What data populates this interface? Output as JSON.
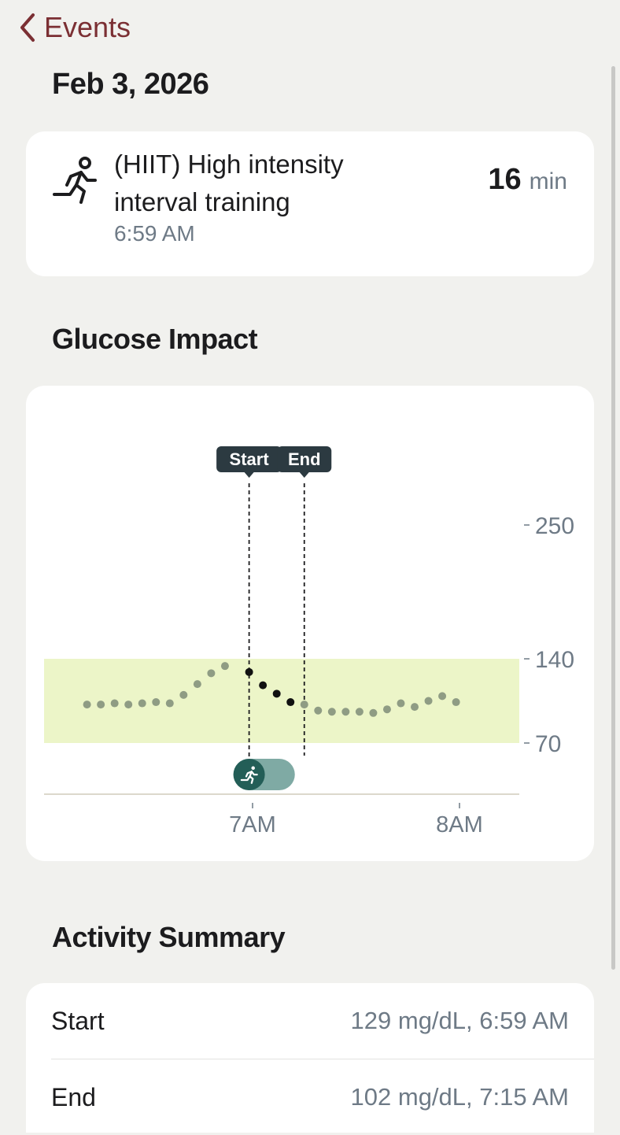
{
  "nav": {
    "back_label": "Events"
  },
  "date": "Feb 3, 2026",
  "event": {
    "name": "(HIIT) High intensity interval training",
    "time": "6:59 AM",
    "duration_value": "16",
    "duration_unit": "min",
    "icon": "running-person-icon"
  },
  "sections": {
    "glucose_impact": "Glucose Impact",
    "activity_summary": "Activity Summary"
  },
  "chart_data": {
    "type": "scatter",
    "x_ticks": [
      "7AM",
      "8AM"
    ],
    "y_ticks": [
      250,
      140,
      70
    ],
    "target_range": [
      70,
      140
    ],
    "markers": [
      {
        "label": "Start",
        "x": "6:59 AM"
      },
      {
        "label": "End",
        "x": "7:15 AM"
      }
    ],
    "points_before": [
      [
        "6:12",
        102
      ],
      [
        "6:16",
        102
      ],
      [
        "6:20",
        103
      ],
      [
        "6:24",
        102
      ],
      [
        "6:28",
        103
      ],
      [
        "6:32",
        104
      ],
      [
        "6:36",
        103
      ],
      [
        "6:40",
        110
      ],
      [
        "6:44",
        119
      ],
      [
        "6:48",
        128
      ],
      [
        "6:52",
        134
      ]
    ],
    "points_activity": [
      [
        "6:59",
        129
      ],
      [
        "7:03",
        118
      ],
      [
        "7:07",
        111
      ],
      [
        "7:11",
        104
      ]
    ],
    "points_after": [
      [
        "7:15",
        102
      ],
      [
        "7:19",
        97
      ],
      [
        "7:23",
        96
      ],
      [
        "7:27",
        96
      ],
      [
        "7:31",
        96
      ],
      [
        "7:35",
        95
      ],
      [
        "7:39",
        98
      ],
      [
        "7:43",
        103
      ],
      [
        "7:47",
        100
      ],
      [
        "7:51",
        105
      ],
      [
        "7:55",
        109
      ],
      [
        "7:59",
        104
      ]
    ],
    "colors": {
      "target_band": "#ecf5c8",
      "dot_muted": "#8f9c84",
      "dot_active": "#111111",
      "activity_bar": "#7faaa4",
      "activity_icon_bg": "#235e57"
    }
  },
  "summary": [
    {
      "label": "Start",
      "value": "129 mg/dL, 6:59 AM"
    },
    {
      "label": "End",
      "value": "102 mg/dL, 7:15 AM"
    }
  ]
}
